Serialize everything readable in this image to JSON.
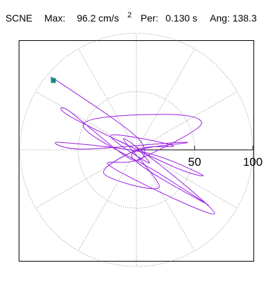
{
  "chart_data": {
    "type": "polar",
    "title_parts": [
      "SCNE",
      "Max:",
      "96.2 cm/s",
      "2",
      "Per:",
      "0.130 s",
      "Ang: 138.3"
    ],
    "rlim": [
      0,
      100
    ],
    "rticks": [
      50,
      100
    ],
    "grid": true,
    "series": [
      {
        "color": "#9a1ee0",
        "marker_color": "#008f7a",
        "x": [
          -71.4,
          -66.7,
          1.8,
          -4.2,
          -57.7,
          -54.8,
          31.5,
          56.5,
          7.7,
          -66.7,
          -45.8,
          43.5,
          -4.2,
          61.3,
          19.6,
          -45.8,
          25.6,
          55.4,
          1.8,
          -22,
          67.3,
          -10.1,
          19.6,
          -28,
          1.8,
          31.5,
          -22,
          10.7,
          -1.2
        ],
        "y": [
          59.5,
          58.3,
          9.5,
          -8.3,
          33.3,
          27.4,
          -14.3,
          -21.4,
          -2.4,
          6.5,
          0.6,
          6.5,
          -5.4,
          -47.0,
          -20.2,
          21.4,
          30.4,
          21.4,
          -8.3,
          -14.3,
          -54.8,
          9.5,
          -32.1,
          -20.2,
          0.6,
          3.6,
          12.5,
          -11.3,
          3.6
        ]
      }
    ]
  }
}
